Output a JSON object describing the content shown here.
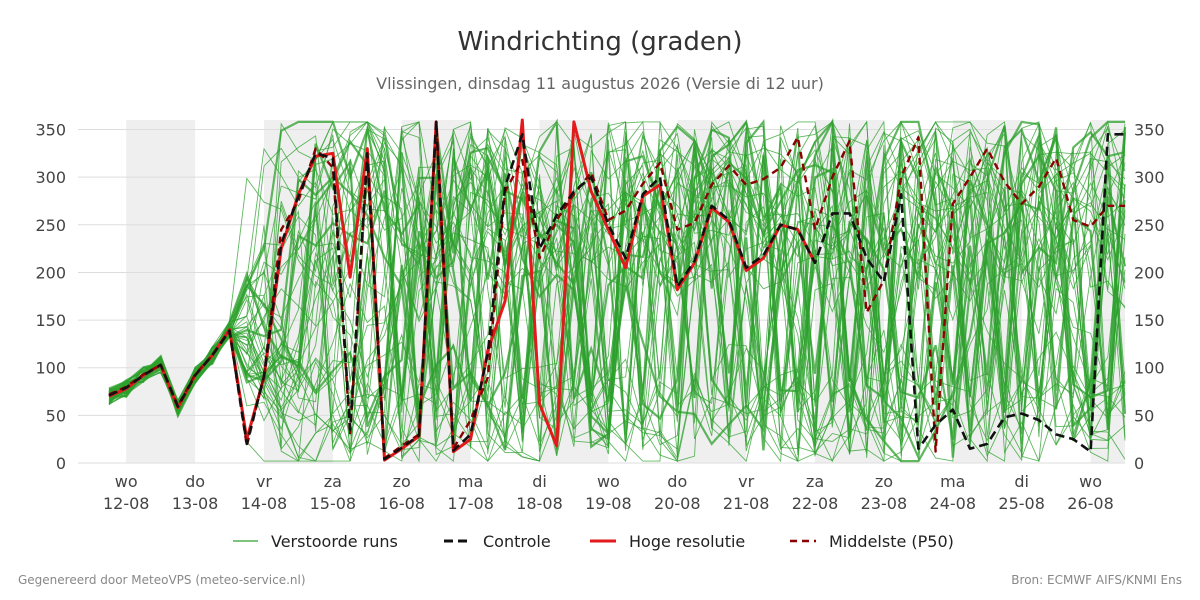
{
  "title": "Windrichting (graden)",
  "subtitle": "Vlissingen, dinsdag 11 augustus 2026 (Versie di 12 uur)",
  "footer_left": "Gegenereerd door MeteoVPS (meteo-service.nl)",
  "footer_right": "Bron: ECMWF AIFS/KNMI Ens",
  "chart_data": {
    "type": "line",
    "ylim": [
      0,
      360
    ],
    "yticks": [
      0,
      50,
      100,
      150,
      200,
      250,
      300,
      350
    ],
    "grid": true,
    "x_days": [
      {
        "day": "wo",
        "date": "12-08"
      },
      {
        "day": "do",
        "date": "13-08"
      },
      {
        "day": "vr",
        "date": "14-08"
      },
      {
        "day": "za",
        "date": "15-08"
      },
      {
        "day": "zo",
        "date": "16-08"
      },
      {
        "day": "ma",
        "date": "17-08"
      },
      {
        "day": "di",
        "date": "18-08"
      },
      {
        "day": "wo",
        "date": "19-08"
      },
      {
        "day": "do",
        "date": "20-08"
      },
      {
        "day": "vr",
        "date": "21-08"
      },
      {
        "day": "za",
        "date": "22-08"
      },
      {
        "day": "zo",
        "date": "23-08"
      },
      {
        "day": "ma",
        "date": "24-08"
      },
      {
        "day": "di",
        "date": "25-08"
      },
      {
        "day": "wo",
        "date": "26-08"
      }
    ],
    "x_start_days": -0.7,
    "x_end_days": 14.5,
    "shaded_day_ranges": [
      [
        0.0,
        1.0
      ],
      [
        2.0,
        3.0
      ],
      [
        4.0,
        5.0
      ],
      [
        6.0,
        7.0
      ],
      [
        8.0,
        9.0
      ],
      [
        10.0,
        11.0
      ],
      [
        12.0,
        13.0
      ],
      [
        14.0,
        14.5
      ]
    ],
    "legend": {
      "placement": "bottom",
      "entries": [
        "Verstoorde runs",
        "Controle",
        "Hoge resolutie",
        "Middelste (P50)"
      ]
    },
    "colors": {
      "ensemble": "#2ca02c",
      "controle": "#111111",
      "hoge_resolutie": "#e31a1c",
      "p50": "#8b0000",
      "shade": "#efefef",
      "grid": "#dddddd"
    },
    "series": [
      {
        "name": "Hoge resolutie",
        "x": [
          -0.25,
          0,
          0.25,
          0.5,
          0.75,
          1,
          1.25,
          1.5,
          1.75,
          2,
          2.25,
          2.5,
          2.75,
          3,
          3.25,
          3.5,
          3.75,
          4,
          4.25,
          4.5,
          4.75,
          5,
          5.25,
          5.5,
          5.75,
          6,
          6.25,
          6.5,
          6.75,
          7,
          7.25,
          7.5,
          7.75,
          8,
          8.25,
          8.5,
          8.75,
          9,
          9.25,
          9.5,
          9.75,
          10
        ],
        "y": [
          70,
          78,
          92,
          103,
          58,
          92,
          113,
          140,
          25,
          90,
          225,
          282,
          322,
          325,
          195,
          330,
          3,
          15,
          28,
          358,
          12,
          25,
          118,
          170,
          360,
          62,
          18,
          358,
          285,
          245,
          205,
          280,
          292,
          182,
          210,
          268,
          253,
          202,
          215,
          250,
          245,
          210
        ]
      },
      {
        "name": "Middelste (P50)",
        "x": [
          -0.25,
          0,
          0.25,
          0.5,
          0.75,
          1,
          1.25,
          1.5,
          1.75,
          2,
          2.25,
          2.5,
          2.75,
          3,
          3.25,
          3.5,
          3.75,
          4,
          4.25,
          4.5,
          4.75,
          5,
          5.25,
          5.5,
          5.75,
          6,
          6.25,
          6.5,
          6.75,
          7,
          7.25,
          7.5,
          7.75,
          8,
          8.25,
          8.5,
          8.75,
          9,
          9.25,
          9.5,
          9.75,
          10,
          10.25,
          10.5,
          10.75,
          11,
          11.25,
          11.5,
          11.75,
          12,
          12.25,
          12.5,
          12.75,
          13,
          13.25,
          13.5,
          13.75,
          14,
          14.25,
          14.5
        ],
        "y": [
          72,
          80,
          93,
          103,
          60,
          93,
          113,
          138,
          18,
          92,
          245,
          275,
          330,
          310,
          30,
          320,
          5,
          18,
          30,
          358,
          15,
          45,
          90,
          285,
          318,
          215,
          255,
          282,
          305,
          255,
          265,
          293,
          315,
          245,
          252,
          292,
          312,
          292,
          298,
          310,
          342,
          245,
          300,
          338,
          158,
          192,
          300,
          342,
          12,
          272,
          300,
          330,
          295,
          272,
          290,
          320,
          255,
          248,
          270,
          270
        ]
      },
      {
        "name": "Controle",
        "x": [
          -0.25,
          0,
          0.25,
          0.5,
          0.75,
          1,
          1.25,
          1.5,
          1.75,
          2,
          2.25,
          2.5,
          2.75,
          3,
          3.25,
          3.5,
          3.75,
          4,
          4.25,
          4.5,
          4.75,
          5,
          5.25,
          5.5,
          5.75,
          6,
          6.25,
          6.5,
          6.75,
          7,
          7.25,
          7.5,
          7.75,
          8,
          8.25,
          8.5,
          8.75,
          9,
          9.25,
          9.5,
          9.75,
          10,
          10.25,
          10.5,
          10.75,
          11,
          11.25,
          11.5,
          11.75,
          12,
          12.25,
          12.5,
          12.75,
          13,
          13.25,
          13.5,
          13.75,
          14,
          14.25,
          14.5
        ],
        "y": [
          71,
          79,
          92,
          103,
          59,
          92,
          113,
          139,
          20,
          91,
          230,
          280,
          325,
          320,
          35,
          325,
          4,
          16,
          29,
          358,
          13,
          30,
          115,
          290,
          345,
          225,
          260,
          285,
          300,
          250,
          215,
          282,
          300,
          185,
          212,
          270,
          255,
          205,
          218,
          250,
          245,
          210,
          262,
          262,
          215,
          190,
          282,
          15,
          40,
          56,
          15,
          20,
          48,
          52,
          45,
          30,
          25,
          12,
          345,
          345
        ]
      }
    ]
  }
}
